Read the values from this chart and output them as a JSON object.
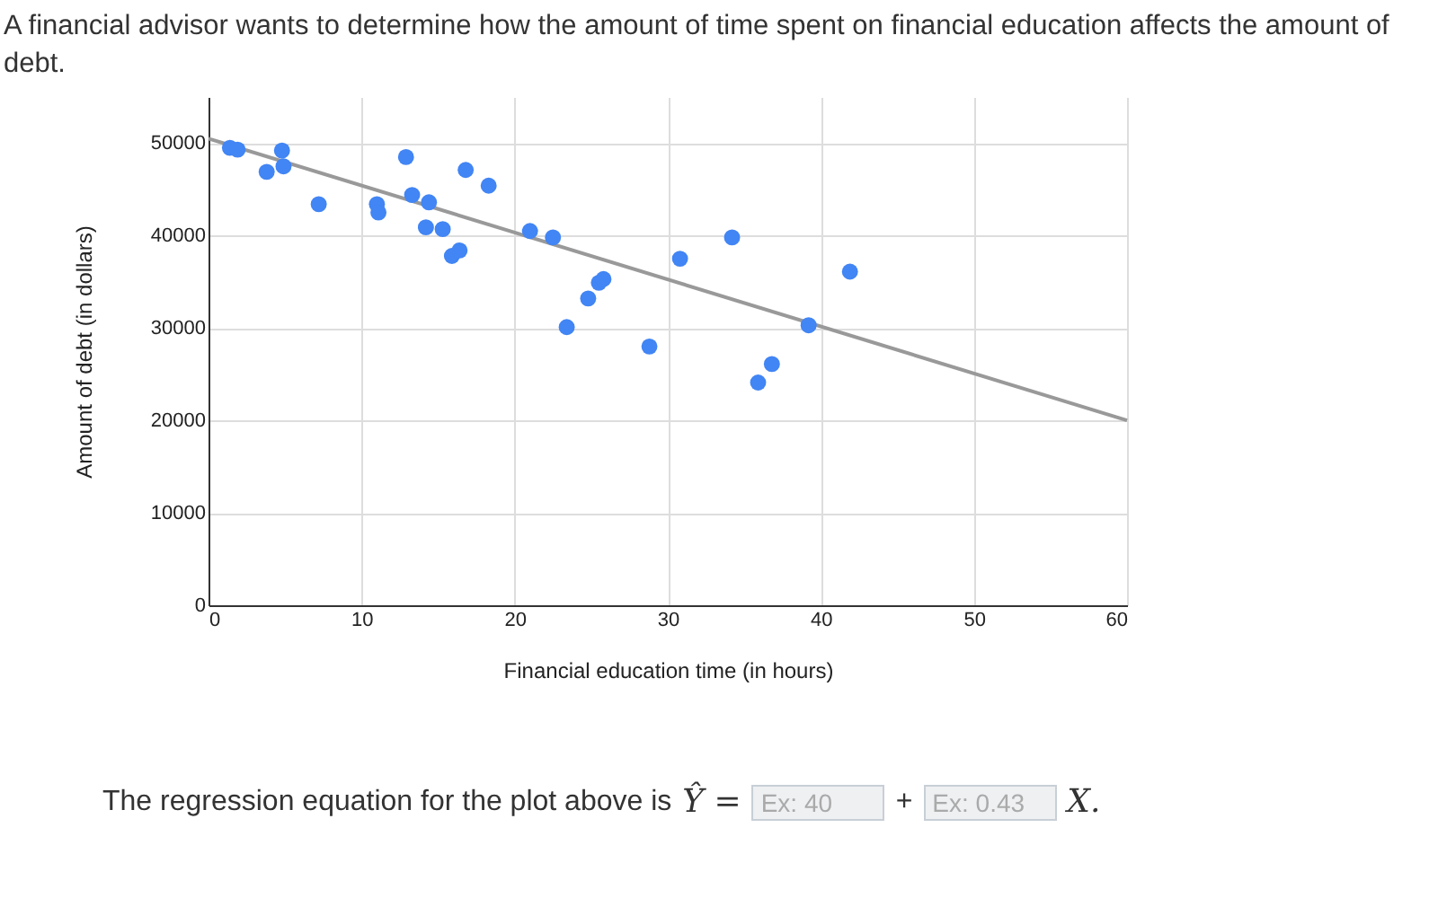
{
  "chart_data": {
    "type": "scatter",
    "title": "A financial advisor wants to determine how the amount of time spent on financial education affects the amount of debt.",
    "xlabel": "Financial education time (in hours)",
    "ylabel": "Amount of debt (in dollars)",
    "xlim": [
      0,
      60
    ],
    "xticks": [
      0,
      10,
      20,
      30,
      40,
      50,
      60
    ],
    "ylim": [
      0,
      55000
    ],
    "yticks": [
      0,
      10000,
      20000,
      30000,
      40000,
      50000
    ],
    "grid": true,
    "series": [
      {
        "type": "line",
        "marker": "none",
        "color": "#999999",
        "x": [
          0,
          60
        ],
        "values": [
          50500,
          20000
        ]
      },
      {
        "marker": "circle",
        "color": "#4285f4",
        "x": [
          1.4,
          1.9,
          3.8,
          4.8,
          4.9,
          7.2,
          11.0,
          11.1,
          12.9,
          13.3,
          14.4,
          14.2,
          15.3,
          15.9,
          16.4,
          16.8,
          18.3,
          21.0,
          22.5,
          23.4,
          24.8,
          25.5,
          25.8,
          28.8,
          30.8,
          34.2,
          35.9,
          36.8,
          39.2,
          41.9
        ],
        "values": [
          49500,
          49300,
          46900,
          49200,
          47500,
          43400,
          43400,
          42500,
          48500,
          44400,
          43600,
          40900,
          40700,
          37800,
          38400,
          47100,
          45400,
          40500,
          39800,
          30100,
          33200,
          34900,
          35300,
          28000,
          37500,
          39800,
          24100,
          26100,
          30300,
          36100
        ]
      }
    ],
    "annotations": [
      "The regression equation for the plot above is",
      "Ŷ =",
      "Ex: 40",
      "+",
      "Ex: 0.43",
      "X."
    ]
  }
}
